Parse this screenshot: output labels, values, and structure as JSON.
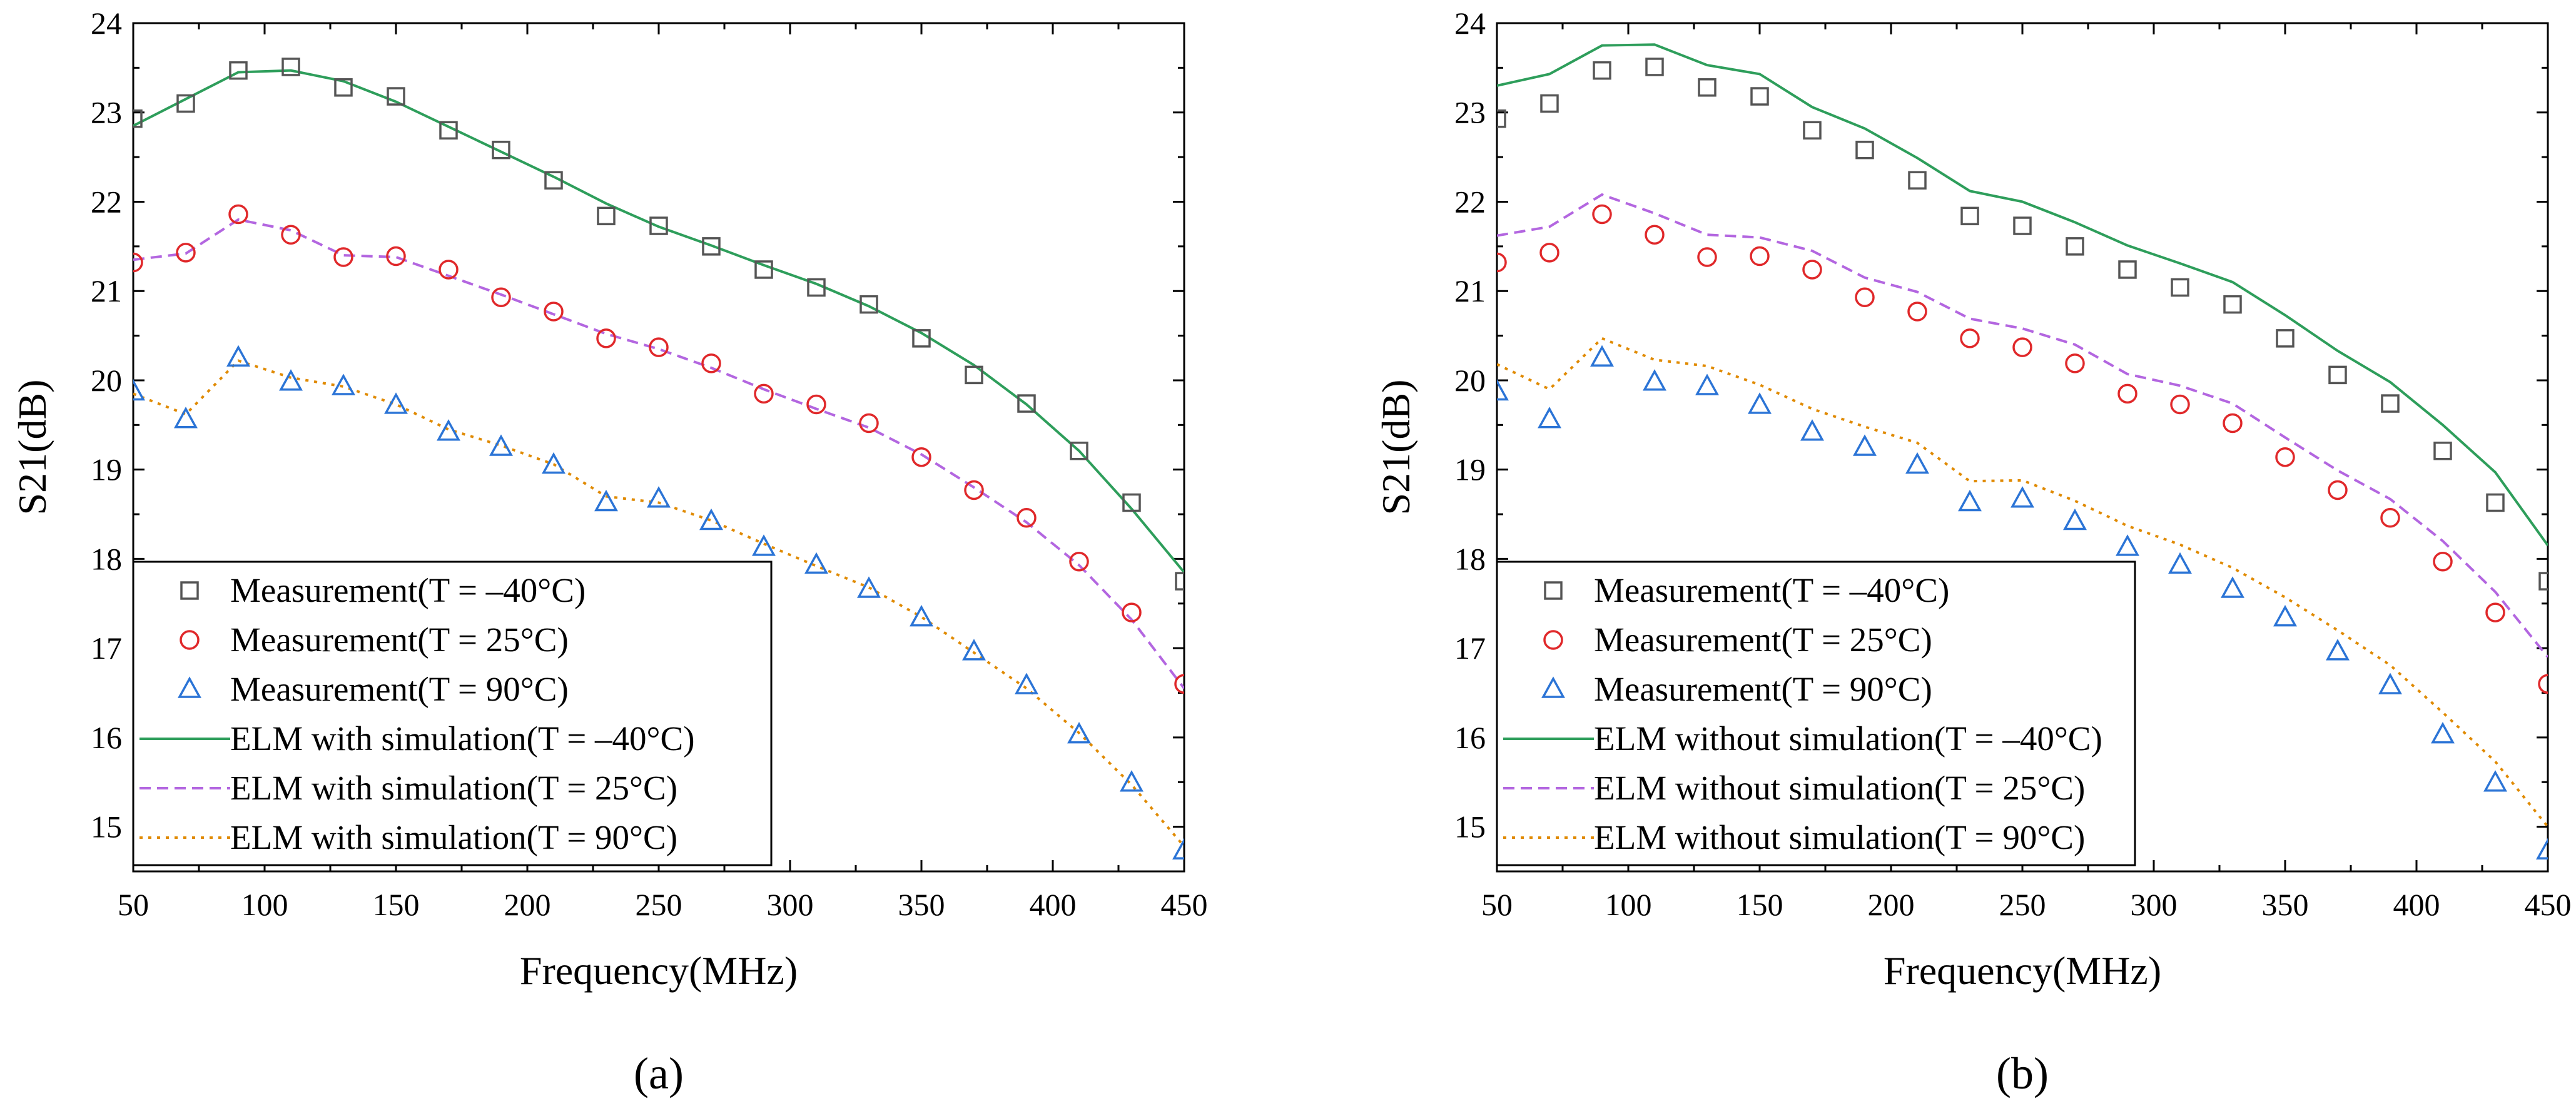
{
  "chart_data": [
    {
      "type": "line",
      "panel_label": "(a)",
      "xlabel": "Frequency(MHz)",
      "ylabel": "S21(dB)",
      "xlim": [
        50,
        450
      ],
      "ylim": [
        14.5,
        24
      ],
      "xticks": [
        50,
        100,
        150,
        200,
        250,
        300,
        350,
        400,
        450
      ],
      "yticks": [
        15,
        16,
        17,
        18,
        19,
        20,
        21,
        22,
        23,
        24
      ],
      "legend_position": "bottom-left",
      "x": [
        50,
        70,
        90,
        110,
        130,
        150,
        170,
        190,
        210,
        230,
        250,
        270,
        290,
        310,
        330,
        350,
        370,
        390,
        410,
        430,
        450
      ],
      "series": [
        {
          "name": "Measurement(T = –40°C)",
          "kind": "marker",
          "marker": "square",
          "color": "#555555",
          "values": [
            22.93,
            23.1,
            23.47,
            23.51,
            23.28,
            23.18,
            22.8,
            22.58,
            22.24,
            21.84,
            21.73,
            21.5,
            21.24,
            21.04,
            20.85,
            20.47,
            20.06,
            19.74,
            19.21,
            18.63,
            17.75
          ]
        },
        {
          "name": "Measurement(T = 25°C)",
          "kind": "marker",
          "marker": "circle",
          "color": "#e0282a",
          "values": [
            21.32,
            21.43,
            21.86,
            21.63,
            21.38,
            21.39,
            21.24,
            20.93,
            20.77,
            20.47,
            20.37,
            20.19,
            19.85,
            19.73,
            19.52,
            19.14,
            18.77,
            18.46,
            17.97,
            17.4,
            16.6
          ]
        },
        {
          "name": "Measurement(T = 90°C)",
          "kind": "marker",
          "marker": "triangle",
          "color": "#2b74d6",
          "values": [
            19.87,
            19.56,
            20.25,
            19.98,
            19.93,
            19.72,
            19.42,
            19.25,
            19.05,
            18.63,
            18.67,
            18.42,
            18.13,
            17.93,
            17.66,
            17.34,
            16.96,
            16.58,
            16.03,
            15.49,
            14.73
          ]
        },
        {
          "name": "ELM with simulation(T = –40°C)",
          "kind": "line",
          "dash": "solid",
          "color": "#2e9e5b",
          "values": [
            22.85,
            23.15,
            23.45,
            23.47,
            23.35,
            23.12,
            22.84,
            22.56,
            22.28,
            21.98,
            21.72,
            21.51,
            21.29,
            21.08,
            20.83,
            20.53,
            20.17,
            19.73,
            19.21,
            18.56,
            17.85
          ]
        },
        {
          "name": "ELM with simulation(T = 25°C)",
          "kind": "line",
          "dash": "dashed",
          "color": "#b366e0",
          "values": [
            21.35,
            21.42,
            21.8,
            21.68,
            21.4,
            21.38,
            21.17,
            20.96,
            20.74,
            20.52,
            20.35,
            20.14,
            19.9,
            19.68,
            19.47,
            19.17,
            18.8,
            18.41,
            17.93,
            17.32,
            16.55
          ]
        },
        {
          "name": "ELM with simulation(T = 90°C)",
          "kind": "line",
          "dash": "dotted",
          "color": "#e08a00",
          "values": [
            19.85,
            19.62,
            20.22,
            20.03,
            19.93,
            19.73,
            19.45,
            19.27,
            19.06,
            18.7,
            18.63,
            18.43,
            18.17,
            17.92,
            17.68,
            17.35,
            16.95,
            16.55,
            16.05,
            15.47,
            14.78
          ]
        }
      ]
    },
    {
      "type": "line",
      "panel_label": "(b)",
      "xlabel": "Frequency(MHz)",
      "ylabel": "S21(dB)",
      "xlim": [
        50,
        450
      ],
      "ylim": [
        14.5,
        24
      ],
      "xticks": [
        50,
        100,
        150,
        200,
        250,
        300,
        350,
        400,
        450
      ],
      "yticks": [
        15,
        16,
        17,
        18,
        19,
        20,
        21,
        22,
        23,
        24
      ],
      "legend_position": "bottom-left",
      "x": [
        50,
        70,
        90,
        110,
        130,
        150,
        170,
        190,
        210,
        230,
        250,
        270,
        290,
        310,
        330,
        350,
        370,
        390,
        410,
        430,
        450
      ],
      "series": [
        {
          "name": "Measurement(T = –40°C)",
          "kind": "marker",
          "marker": "square",
          "color": "#555555",
          "values": [
            22.93,
            23.1,
            23.47,
            23.51,
            23.28,
            23.18,
            22.8,
            22.58,
            22.24,
            21.84,
            21.73,
            21.5,
            21.24,
            21.04,
            20.85,
            20.47,
            20.06,
            19.74,
            19.21,
            18.63,
            17.75
          ]
        },
        {
          "name": "Measurement(T = 25°C)",
          "kind": "marker",
          "marker": "circle",
          "color": "#e0282a",
          "values": [
            21.32,
            21.43,
            21.86,
            21.63,
            21.38,
            21.39,
            21.24,
            20.93,
            20.77,
            20.47,
            20.37,
            20.19,
            19.85,
            19.73,
            19.52,
            19.14,
            18.77,
            18.46,
            17.97,
            17.4,
            16.6
          ]
        },
        {
          "name": "Measurement(T = 90°C)",
          "kind": "marker",
          "marker": "triangle",
          "color": "#2b74d6",
          "values": [
            19.87,
            19.56,
            20.25,
            19.98,
            19.93,
            19.72,
            19.42,
            19.25,
            19.05,
            18.63,
            18.67,
            18.42,
            18.13,
            17.93,
            17.66,
            17.34,
            16.96,
            16.58,
            16.03,
            15.49,
            14.73
          ]
        },
        {
          "name": "ELM without simulation(T = –40°C)",
          "kind": "line",
          "dash": "solid",
          "color": "#2e9e5b",
          "values": [
            23.3,
            23.43,
            23.75,
            23.76,
            23.53,
            23.43,
            23.06,
            22.82,
            22.49,
            22.12,
            22.0,
            21.77,
            21.51,
            21.31,
            21.1,
            20.73,
            20.33,
            19.98,
            19.5,
            18.97,
            18.15
          ]
        },
        {
          "name": "ELM without simulation(T = 25°C)",
          "kind": "line",
          "dash": "dashed",
          "color": "#b366e0",
          "values": [
            21.62,
            21.72,
            22.08,
            21.87,
            21.63,
            21.6,
            21.45,
            21.15,
            20.99,
            20.69,
            20.58,
            20.4,
            20.07,
            19.94,
            19.74,
            19.36,
            18.99,
            18.67,
            18.2,
            17.63,
            16.9
          ]
        },
        {
          "name": "ELM without simulation(T = 90°C)",
          "kind": "line",
          "dash": "dotted",
          "color": "#e08a00",
          "values": [
            20.18,
            19.9,
            20.47,
            20.23,
            20.16,
            19.95,
            19.68,
            19.48,
            19.3,
            18.87,
            18.88,
            18.65,
            18.37,
            18.16,
            17.9,
            17.57,
            17.2,
            16.81,
            16.28,
            15.73,
            15.0
          ]
        }
      ]
    }
  ]
}
